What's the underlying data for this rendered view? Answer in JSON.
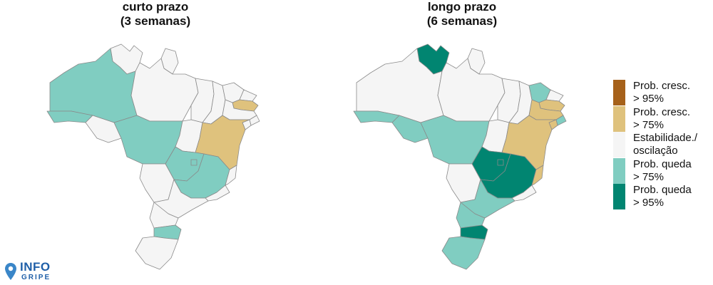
{
  "maps": [
    {
      "title_line1": "curto prazo",
      "title_line2": "(3 semanas)",
      "states": {
        "RR": "stable",
        "AP": "stable",
        "AM": "queda75",
        "PA": "stable",
        "AC": "queda75",
        "RO": "stable",
        "MT": "queda75",
        "TO": "stable",
        "MA": "stable",
        "PI": "stable",
        "CE": "stable",
        "RN": "stable",
        "PB": "cresc75",
        "PE": "stable",
        "AL": "stable",
        "SE": "stable",
        "BA": "cresc75",
        "GO": "queda75",
        "DF": "queda75",
        "MS": "stable",
        "MG": "queda75",
        "ES": "stable",
        "RJ": "stable",
        "SP": "stable",
        "PR": "stable",
        "SC": "queda75",
        "RS": "stable"
      }
    },
    {
      "title_line1": "longo prazo",
      "title_line2": "(6 semanas)",
      "states": {
        "RR": "queda95",
        "AP": "stable",
        "AM": "stable",
        "PA": "stable",
        "AC": "queda75",
        "RO": "queda75",
        "MT": "queda75",
        "TO": "stable",
        "MA": "stable",
        "PI": "stable",
        "CE": "queda75",
        "RN": "stable",
        "PB": "cresc75",
        "PE": "cresc75",
        "AL": "queda75",
        "SE": "cresc75",
        "BA": "cresc75",
        "GO": "queda95",
        "DF": "queda95",
        "MS": "stable",
        "MG": "queda95",
        "ES": "cresc75",
        "RJ": "stable",
        "SP": "queda75",
        "PR": "queda75",
        "SC": "queda95",
        "RS": "queda75"
      }
    }
  ],
  "legend": [
    {
      "key": "cresc95",
      "label": "Prob. cresc.\n> 95%",
      "color": "#a6611a"
    },
    {
      "key": "cresc75",
      "label": "Prob. cresc.\n> 75%",
      "color": "#dfc27d"
    },
    {
      "key": "stable",
      "label": "Estabilidade./\noscilação",
      "color": "#f5f5f5"
    },
    {
      "key": "queda75",
      "label": "Prob. queda\n> 75%",
      "color": "#80cdc1"
    },
    {
      "key": "queda95",
      "label": "Prob. queda\n> 95%",
      "color": "#018571"
    }
  ],
  "logo": {
    "top": "INFO",
    "bottom": "GRIPE",
    "brand_color": "#1f5fa8",
    "pin_color": "#3a86c8",
    "icon": "location-pin-icon"
  }
}
